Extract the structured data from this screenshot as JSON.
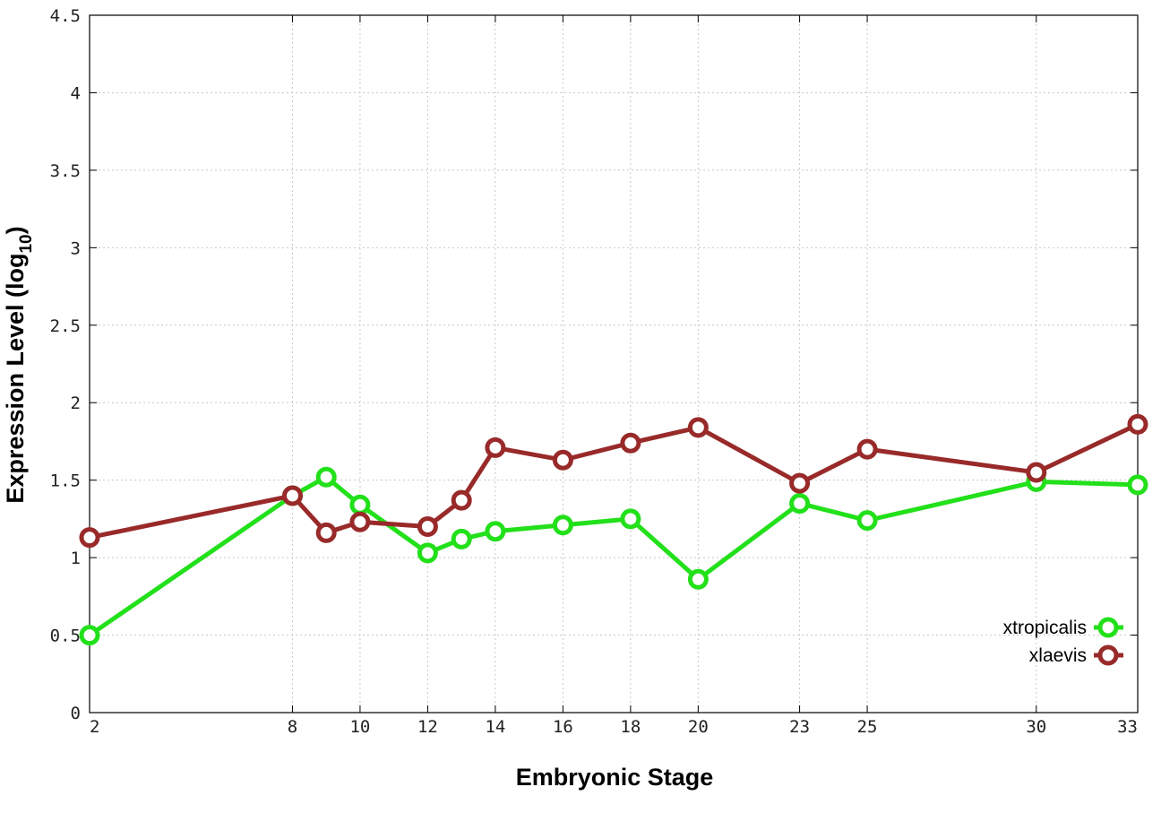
{
  "chart_data": {
    "type": "line",
    "title": "",
    "xlabel": "Embryonic Stage",
    "ylabel_main": "Expression Level (log",
    "ylabel_sub": "10",
    "ylabel_close": ")",
    "xlim": [
      2,
      33
    ],
    "ylim": [
      0,
      4.5
    ],
    "x_ticks": [
      2,
      8,
      10,
      12,
      14,
      16,
      18,
      20,
      23,
      25,
      30,
      33
    ],
    "x_tick_labels": [
      "2",
      "8",
      "10",
      "12",
      "14",
      "16",
      "18",
      "20",
      "23",
      "25",
      "30",
      "33"
    ],
    "y_ticks": [
      0,
      0.5,
      1,
      1.5,
      2,
      2.5,
      3,
      3.5,
      4,
      4.5
    ],
    "y_tick_labels": [
      "0",
      "0.5",
      "1",
      "1.5",
      "2",
      "2.5",
      "3",
      "3.5",
      "4",
      "4.5"
    ],
    "grid": true,
    "legend_position": "bottom-right",
    "series": [
      {
        "name": "xtropicalis",
        "color": "#22e01a",
        "marker": "circle",
        "x": [
          2,
          8,
          9,
          10,
          12,
          13,
          14,
          16,
          18,
          20,
          23,
          25,
          30,
          33
        ],
        "y": [
          0.5,
          1.4,
          1.52,
          1.34,
          1.03,
          1.12,
          1.17,
          1.21,
          1.25,
          0.86,
          1.35,
          1.24,
          1.49,
          1.47
        ]
      },
      {
        "name": "xlaevis",
        "color": "#992a2a",
        "marker": "circle",
        "x": [
          2,
          8,
          9,
          10,
          12,
          13,
          14,
          16,
          18,
          20,
          23,
          25,
          30,
          33
        ],
        "y": [
          1.13,
          1.4,
          1.16,
          1.23,
          1.2,
          1.37,
          1.71,
          1.63,
          1.74,
          1.84,
          1.48,
          1.7,
          1.55,
          1.86
        ]
      }
    ]
  }
}
